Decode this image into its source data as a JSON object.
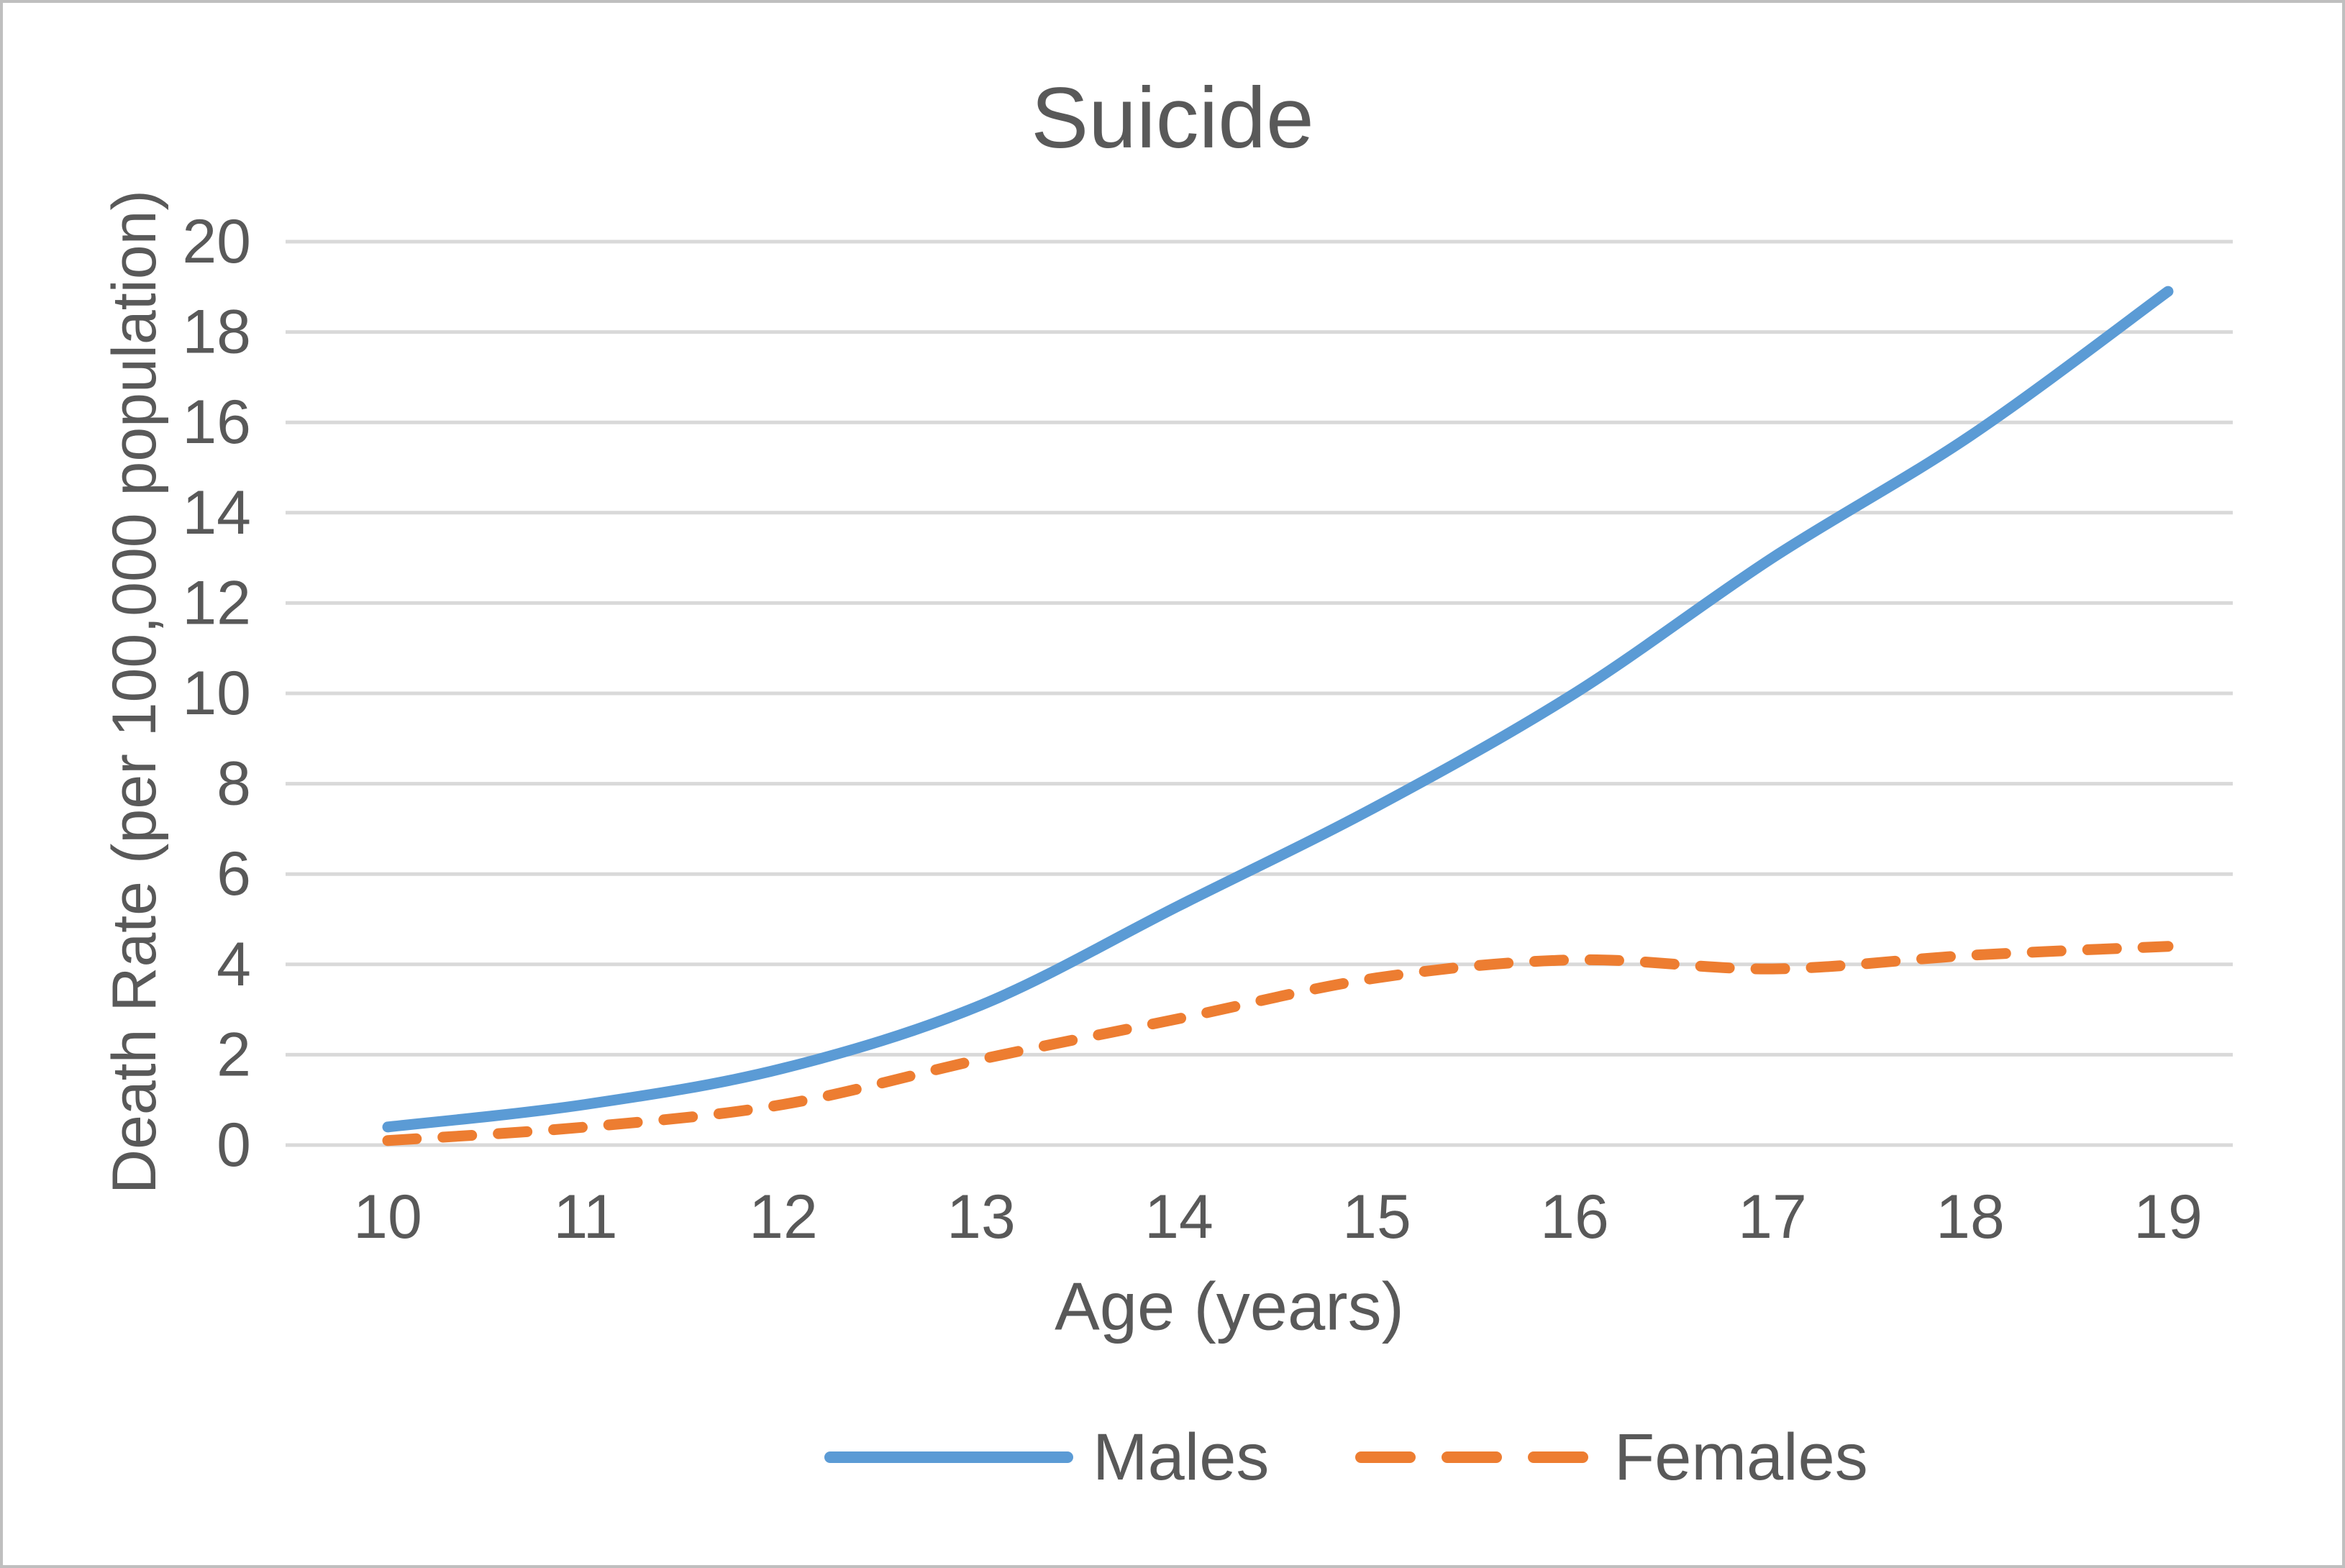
{
  "chart": {
    "title": "Suicide",
    "x_axis_title": "Age (years)",
    "y_axis_title": "Death Rate (per 100,000 population)",
    "legend": [
      {
        "label": "Males",
        "color": "#5B9BD5",
        "dashed": false
      },
      {
        "label": "Females",
        "color": "#ED7D31",
        "dashed": true
      }
    ]
  },
  "chart_data": {
    "type": "line",
    "title": "Suicide",
    "xlabel": "Age (years)",
    "ylabel": "Death Rate (per 100,000 population)",
    "x": [
      10,
      11,
      12,
      13,
      14,
      15,
      16,
      17,
      18,
      19
    ],
    "series": [
      {
        "name": "Males",
        "color": "#5B9BD5",
        "style": "solid",
        "values": [
          0.4,
          0.9,
          1.7,
          3.1,
          5.3,
          7.5,
          10.0,
          13.0,
          15.7,
          18.9
        ]
      },
      {
        "name": "Females",
        "color": "#ED7D31",
        "style": "dashed",
        "values": [
          0.1,
          0.4,
          0.9,
          1.9,
          2.8,
          3.7,
          4.1,
          3.9,
          4.2,
          4.4
        ]
      }
    ],
    "ylim": [
      0,
      20
    ],
    "ytick_step": 2,
    "grid": true,
    "smoothed": true,
    "legend_position": "bottom"
  },
  "colors": {
    "text": "#595959",
    "gridline": "#D9D9D9",
    "background": "#FFFFFF",
    "frame_border": "#BFBFBF"
  }
}
